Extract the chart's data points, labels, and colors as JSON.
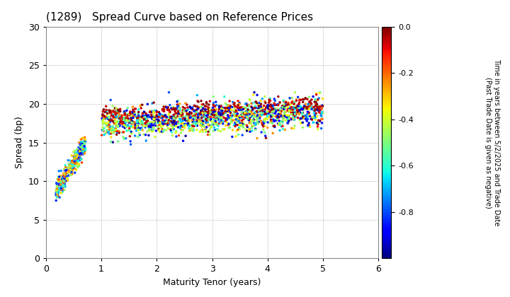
{
  "title": "(1289)   Spread Curve based on Reference Prices",
  "xlabel": "Maturity Tenor (years)",
  "ylabel": "Spread (bp)",
  "colorbar_label": "Time in years between 5/2/2025 and Trade Date\n(Past Trade Date is given as negative)",
  "xlim": [
    0,
    6
  ],
  "ylim": [
    0,
    30
  ],
  "xticks": [
    0,
    1,
    2,
    3,
    4,
    5,
    6
  ],
  "yticks": [
    0,
    5,
    10,
    15,
    20,
    25,
    30
  ],
  "cmap": "jet",
  "clim": [
    -1.0,
    0.0
  ],
  "cticks": [
    0.0,
    -0.2,
    -0.4,
    -0.6,
    -0.8
  ],
  "background_color": "#ffffff",
  "grid_color": "#aaaaaa",
  "marker_size": 2.5,
  "seed": 42
}
